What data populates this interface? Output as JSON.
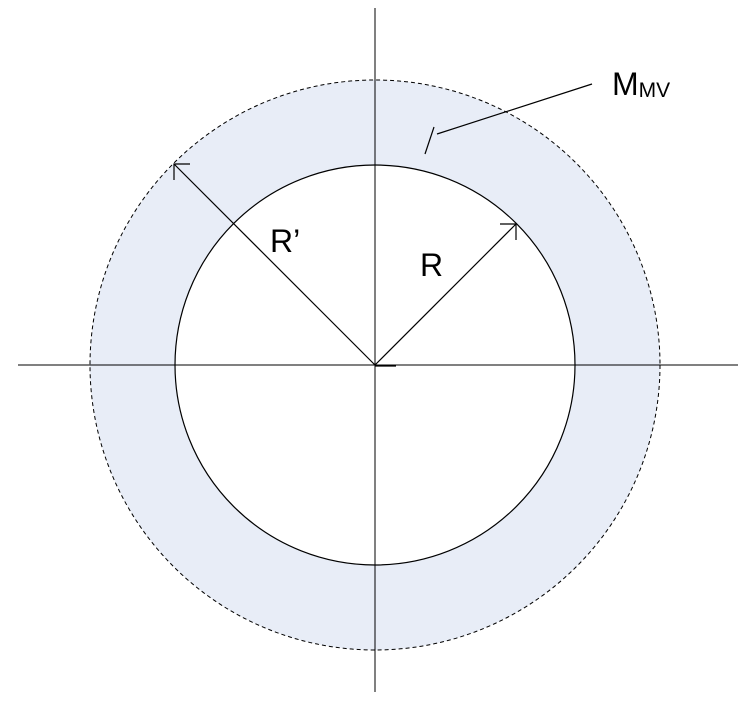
{
  "labels": {
    "annulus": {
      "main": "M",
      "sub": "MV"
    },
    "outer_radius": "R’",
    "inner_radius": "R"
  }
}
